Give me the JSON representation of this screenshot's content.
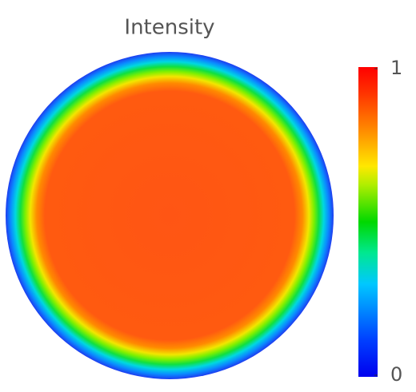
{
  "chart_data": {
    "type": "heatmap",
    "title": "Intensity",
    "colormap": "jet",
    "colorbar": {
      "lim": [
        0,
        1
      ],
      "ticks": [
        0,
        1
      ]
    }
  }
}
